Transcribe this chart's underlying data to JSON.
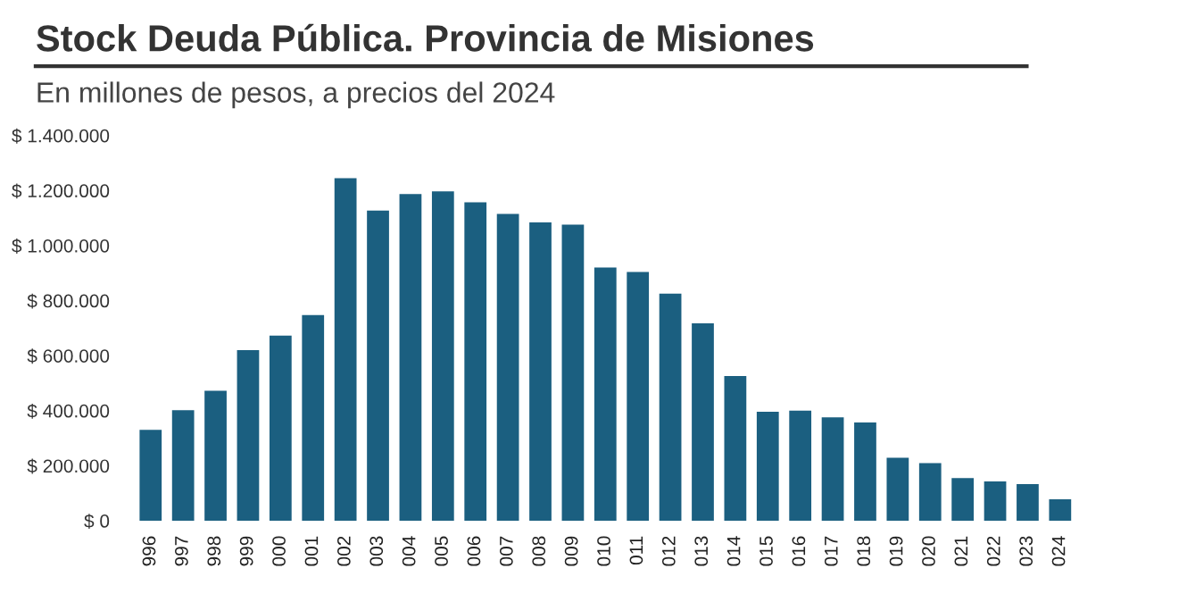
{
  "chart_data": {
    "type": "bar",
    "title": "Stock Deuda Pública. Provincia de Misiones",
    "subtitle": "En millones de pesos, a precios del 2024",
    "categories": [
      "996",
      "997",
      "998",
      "999",
      "000",
      "001",
      "002",
      "003",
      "004",
      "005",
      "006",
      "007",
      "008",
      "009",
      "010",
      "011",
      "012",
      "013",
      "014",
      "015",
      "016",
      "017",
      "018",
      "019",
      "020",
      "021",
      "022",
      "023",
      "024"
    ],
    "values": [
      330000,
      402000,
      472000,
      620000,
      673000,
      747000,
      1245000,
      1127000,
      1187000,
      1197000,
      1157000,
      1115000,
      1084000,
      1076000,
      920000,
      904000,
      825000,
      717000,
      526000,
      396000,
      400000,
      376000,
      357000,
      229000,
      209000,
      155000,
      143000,
      133000,
      78000
    ],
    "color": "#1b5f80",
    "ylim": [
      0,
      1400000
    ],
    "yticks": [
      {
        "value": 0,
        "label": "$ 0"
      },
      {
        "value": 200000,
        "label": "$ 200.000"
      },
      {
        "value": 400000,
        "label": "$ 400.000"
      },
      {
        "value": 600000,
        "label": "$ 600.000"
      },
      {
        "value": 800000,
        "label": "$ 800.000"
      },
      {
        "value": 1000000,
        "label": "$ 1.000.000"
      },
      {
        "value": 1200000,
        "label": "$ 1.200.000"
      },
      {
        "value": 1400000,
        "label": "$ 1.400.000"
      }
    ],
    "grid": false
  }
}
